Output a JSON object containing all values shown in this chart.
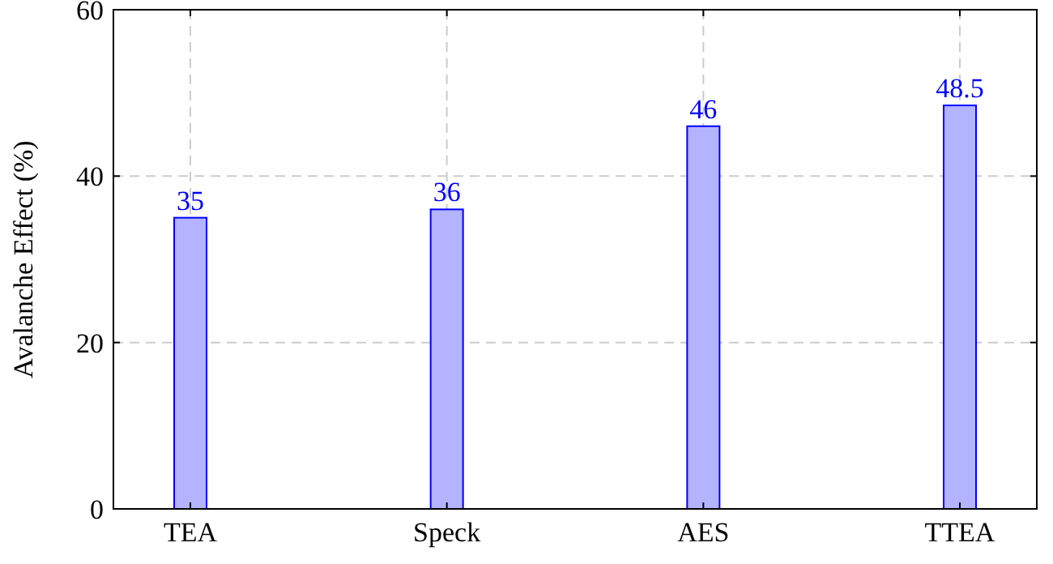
{
  "chart_data": {
    "type": "bar",
    "ylabel": "Avalanche Effect (%)",
    "categories": [
      "TEA",
      "Speck",
      "AES",
      "TTEA"
    ],
    "values": [
      35,
      36,
      46,
      48.5
    ],
    "color": "#b3b3ff",
    "ylim": [
      0,
      60
    ],
    "yticks": [
      0,
      20,
      40,
      60
    ],
    "grid": true,
    "data_labels": true
  }
}
